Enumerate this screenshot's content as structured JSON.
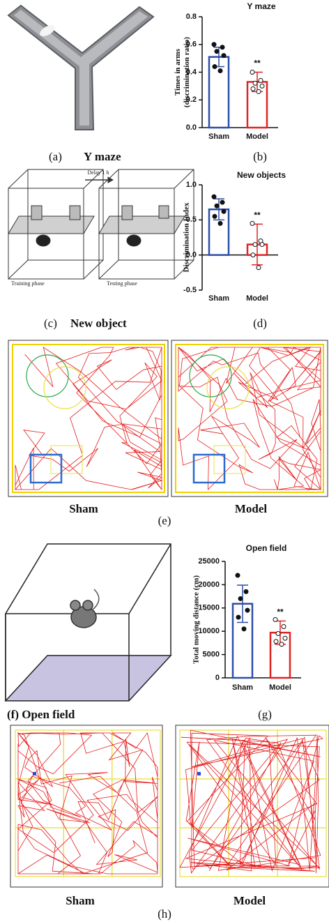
{
  "chart_data": [
    {
      "type": "bar",
      "title": "Y maze",
      "ylabel": [
        "Times in arms",
        "(discrimination ratio)"
      ],
      "categories": [
        "Sham",
        "Model"
      ],
      "values": [
        0.51,
        0.33
      ],
      "errors": [
        0.07,
        0.07
      ],
      "colors": [
        "#2b4fa8",
        "#e02424"
      ],
      "points": [
        [
          0.6,
          0.58,
          0.55,
          0.52,
          0.44,
          0.41
        ],
        [
          0.4,
          0.34,
          0.32,
          0.3,
          0.28,
          0.26
        ]
      ],
      "annotation": "**",
      "ylim": [
        0,
        0.8
      ],
      "yticks": [
        {
          "value": 0,
          "label": "0.0"
        },
        0.2,
        0.4,
        0.6,
        0.8
      ]
    },
    {
      "type": "bar",
      "title": "New objects",
      "ylabel": [
        "Discrimination Index"
      ],
      "categories": [
        "Sham",
        "Model"
      ],
      "values": [
        0.65,
        0.15
      ],
      "errors": [
        0.15,
        0.29
      ],
      "colors": [
        "#2b4fa8",
        "#e02424"
      ],
      "points": [
        [
          0.83,
          0.75,
          0.7,
          0.62,
          0.55,
          0.45
        ],
        [
          0.45,
          0.2,
          0.15,
          0.15,
          0.0,
          -0.18
        ]
      ],
      "annotation": "**",
      "ylim": [
        -0.5,
        1.0
      ],
      "yticks": [
        -0.5,
        {
          "value": 0,
          "label": "0.0"
        },
        0.5,
        {
          "value": 1,
          "label": "1.0"
        }
      ]
    },
    {
      "type": "bar",
      "title": "Open field",
      "ylabel": [
        "Total moving distance (cm)"
      ],
      "categories": [
        "Sham",
        "Model"
      ],
      "values": [
        15900,
        9700
      ],
      "errors": [
        4000,
        2500
      ],
      "colors": [
        "#2b4fa8",
        "#e02424"
      ],
      "points": [
        [
          22000,
          18500,
          17000,
          14500,
          13000,
          10500
        ],
        [
          12500,
          11000,
          9500,
          8500,
          7800,
          7200
        ]
      ],
      "annotation": "**",
      "ylim": [
        0,
        25000
      ],
      "yticks": [
        0,
        5000,
        10000,
        15000,
        20000,
        25000
      ]
    }
  ],
  "panels": {
    "a": {
      "label": "(a)",
      "title": "Y maze"
    },
    "b": {
      "label": "(b)"
    },
    "c": {
      "label": "(c)",
      "title": "New object",
      "delay": "Delay 1 h",
      "training": "Training phase",
      "testing": "Testing phase"
    },
    "d": {
      "label": "(d)"
    },
    "e": {
      "label": "(e)",
      "left": "Sham",
      "right": "Model"
    },
    "f": {
      "label": "(f) Open field"
    },
    "g": {
      "label": "(g)"
    },
    "h": {
      "label": "(h)",
      "left": "Sham",
      "right": "Model"
    }
  }
}
